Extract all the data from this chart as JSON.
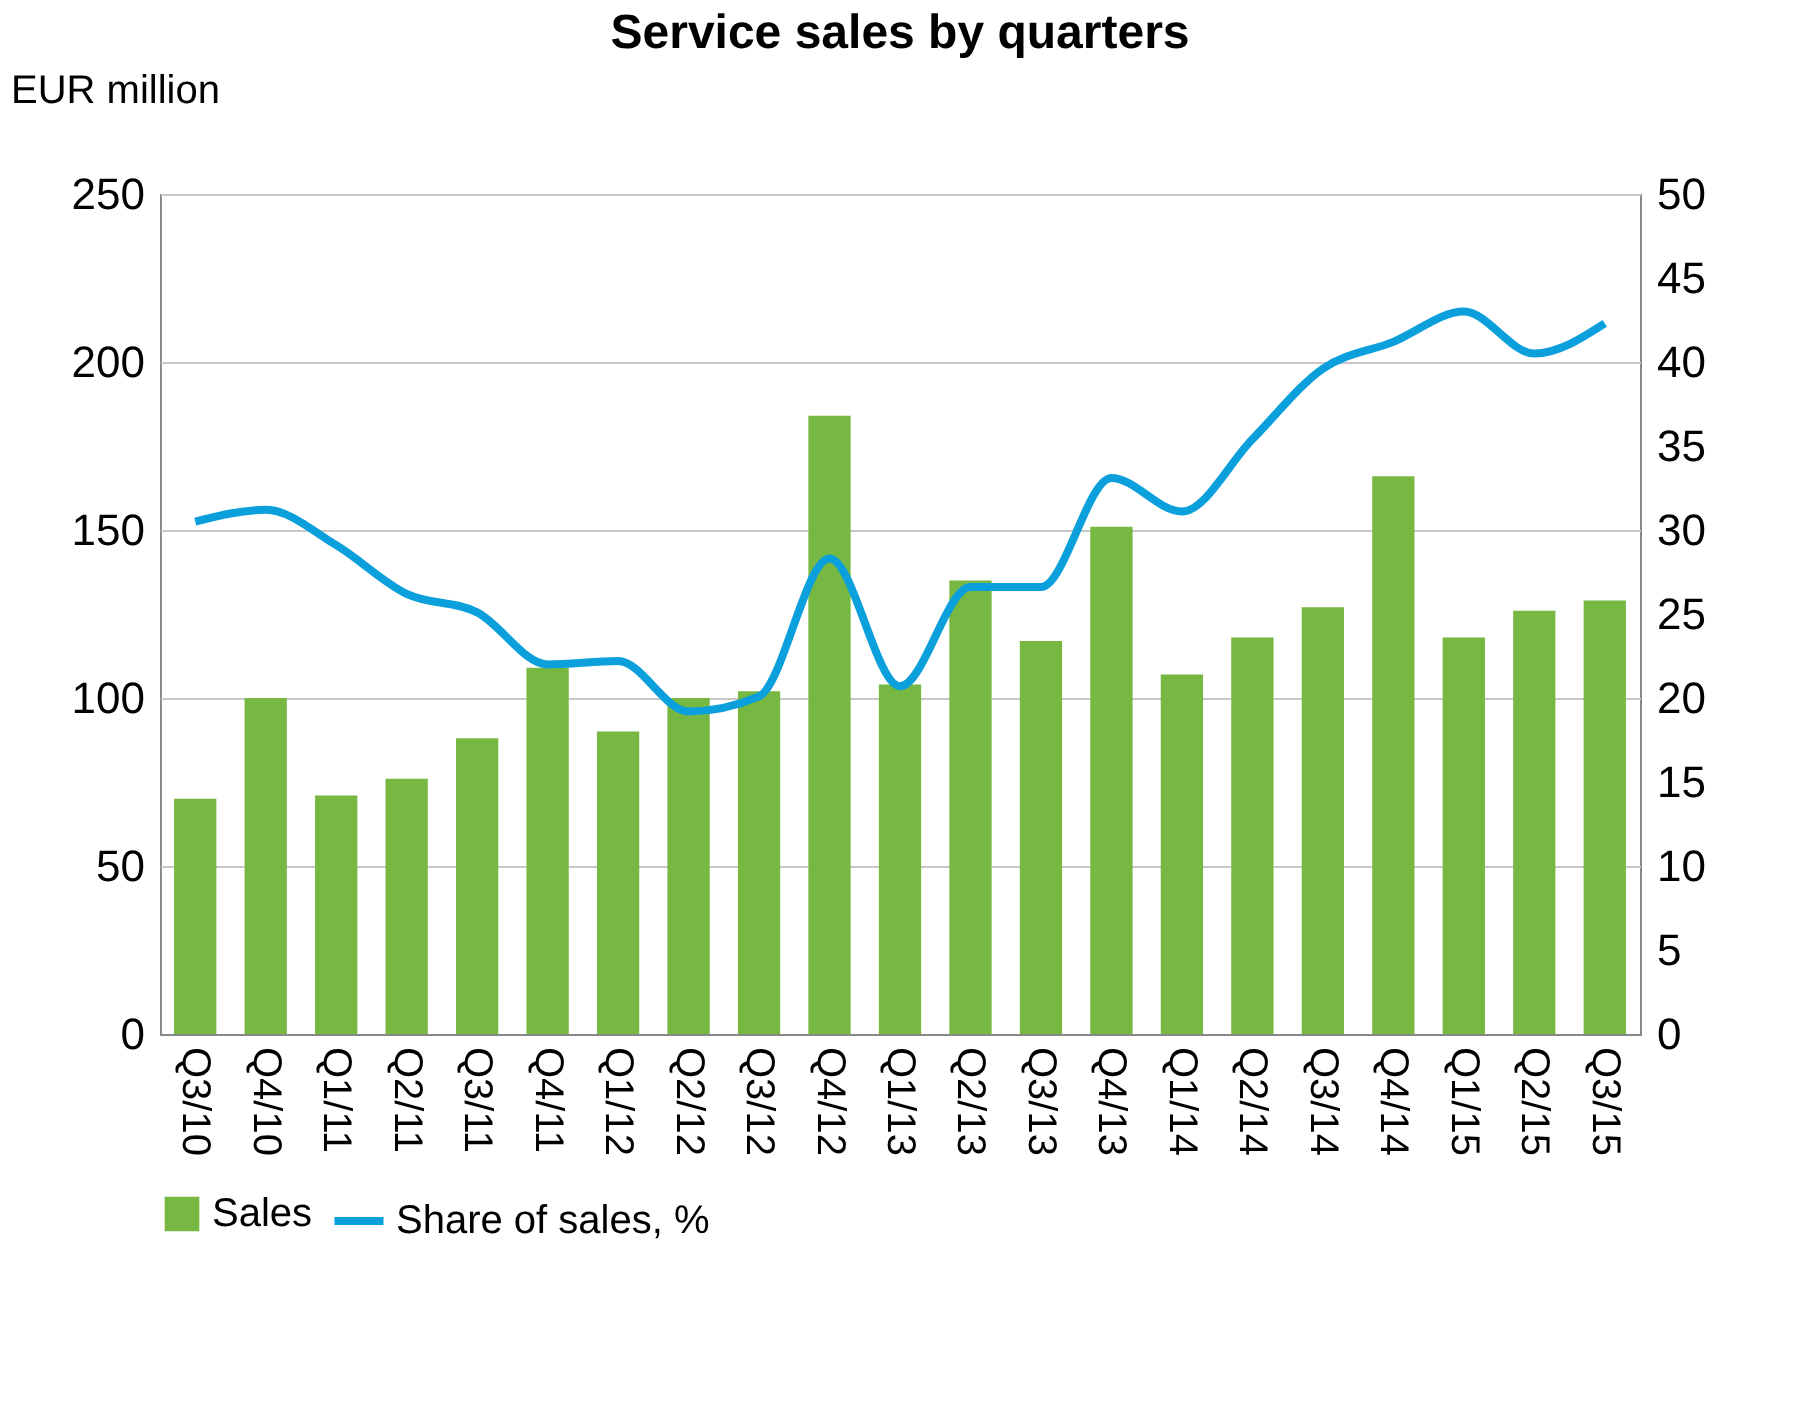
{
  "chart_data": {
    "type": "bar",
    "title": "Service sales by quarters",
    "ylabel": "EUR million",
    "categories": [
      "Q3/10",
      "Q4/10",
      "Q1/11",
      "Q2/11",
      "Q3/11",
      "Q4/11",
      "Q1/12",
      "Q2/12",
      "Q3/12",
      "Q4/12",
      "Q1/13",
      "Q2/13",
      "Q3/13",
      "Q4/13",
      "Q1/14",
      "Q2/14",
      "Q3/14",
      "Q4/14",
      "Q1/15",
      "Q2/15",
      "Q3/15"
    ],
    "series": [
      {
        "name": "Sales",
        "color": "#77b843",
        "values": [
          70,
          100,
          71,
          76,
          88,
          109,
          90,
          100,
          102,
          184,
          104,
          135,
          117,
          151,
          107,
          118,
          127,
          166,
          118,
          126,
          129
        ]
      },
      {
        "name": "Share of sales, %",
        "type": "line",
        "axis": "y2",
        "color": "#0ba0dc",
        "values": [
          30.5,
          31.2,
          29.1,
          26.2,
          25.1,
          22.0,
          22.2,
          19.2,
          20.1,
          28.3,
          20.7,
          26.6,
          26.6,
          33.1,
          31.1,
          35.4,
          39.6,
          41.2,
          43.0,
          40.5,
          42.3
        ]
      }
    ],
    "ylim": [
      0,
      250
    ],
    "yticks": [
      0,
      50,
      100,
      150,
      200,
      250
    ],
    "y2lim": [
      0,
      50
    ],
    "y2ticks": [
      0,
      5,
      10,
      15,
      20,
      25,
      30,
      35,
      40,
      45,
      50
    ],
    "grid": "y",
    "legend": "bottom",
    "marker": "none",
    "line_style": "solid"
  }
}
